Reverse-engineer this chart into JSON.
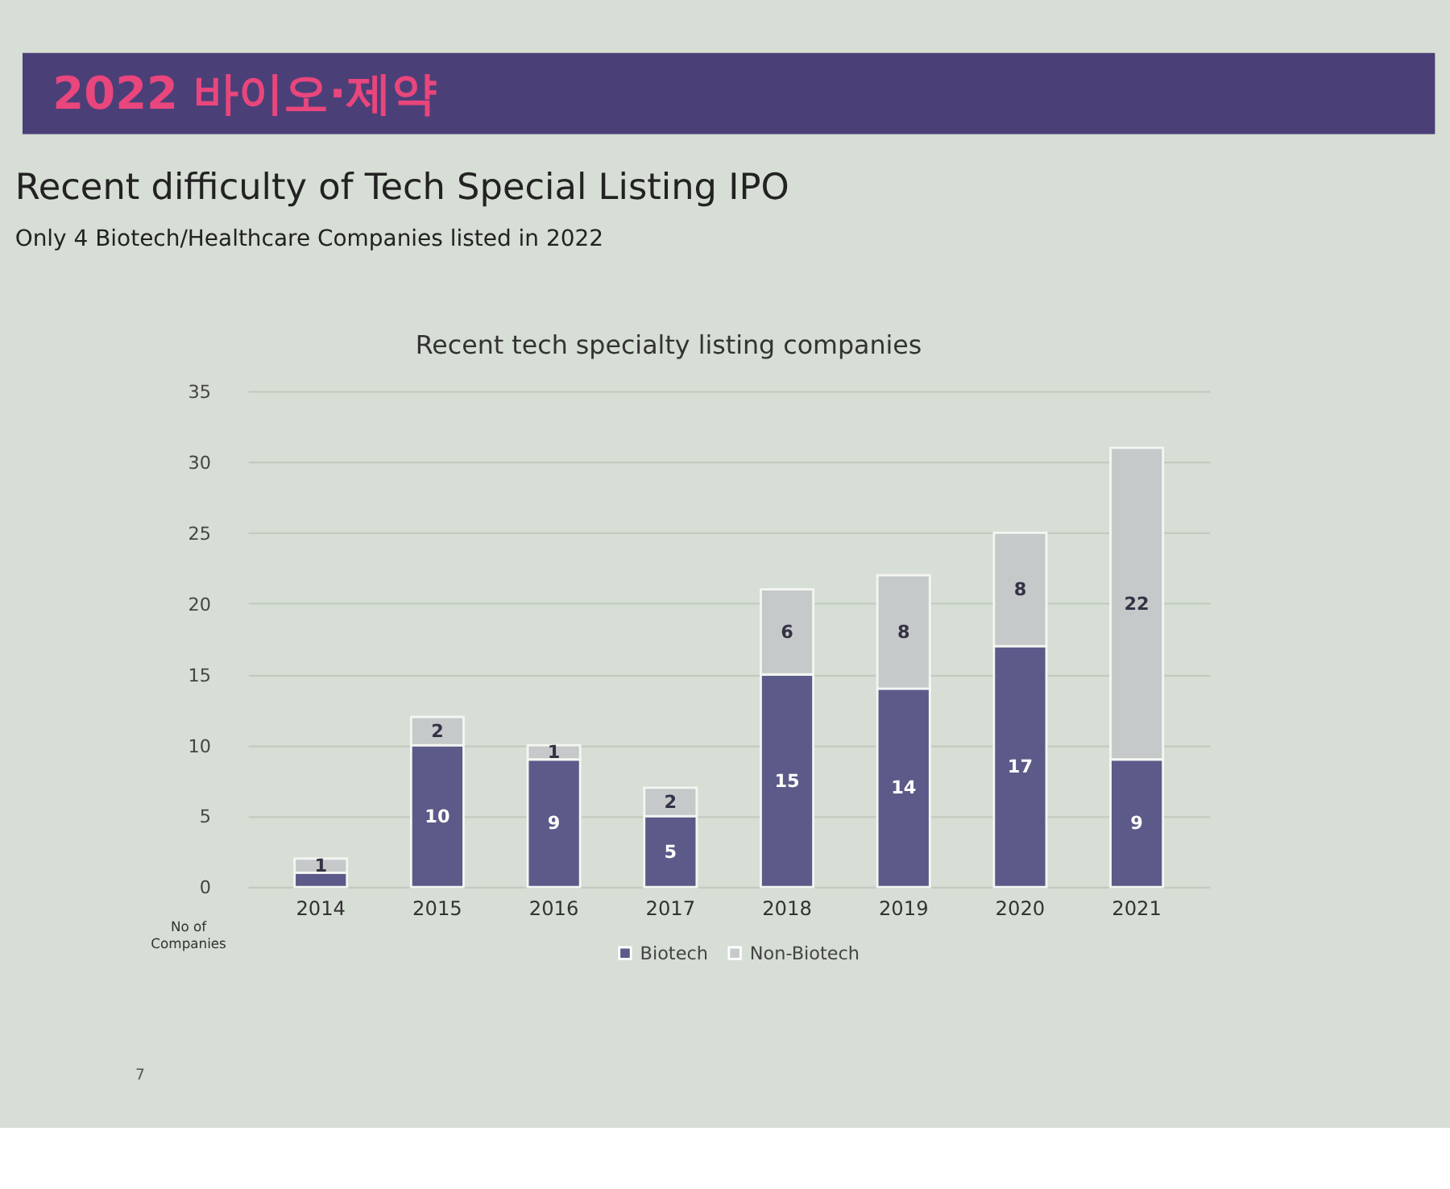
{
  "chart_data": {
    "type": "bar",
    "title": "Recent difficulty of Tech Special Listing IPO",
    "subtitle": "Only 4 Biotech/Healthcare Companies listed in 2022",
    "ylabel": "No of Companies",
    "annotations": [
      "2022 바이오·제약",
      "Recent tech specialty listing companies",
      "7"
    ],
    "categories": [
      "2014",
      "2015",
      "2016",
      "2017",
      "2018",
      "2019",
      "2020",
      "2021"
    ],
    "stacked": true,
    "series": [
      {
        "name": "Biotech",
        "color": "#5b5a88",
        "values": [
          1,
          10,
          9,
          5,
          15,
          14,
          17,
          9
        ],
        "value_labels": [
          null,
          "10",
          "9",
          "5",
          "15",
          "14",
          "17",
          "9"
        ]
      },
      {
        "name": "Non-Biotech",
        "color": "#c5c9ca",
        "values": [
          1,
          2,
          1,
          2,
          6,
          8,
          8,
          22
        ],
        "value_labels": [
          "1",
          "2",
          "1",
          "2",
          "6",
          "8",
          "8",
          "22"
        ]
      }
    ],
    "ylim": [
      0,
      35
    ],
    "yticks": [
      0,
      5,
      10,
      15,
      20,
      25,
      30,
      35
    ],
    "grid": "y",
    "legend": "bottom"
  }
}
